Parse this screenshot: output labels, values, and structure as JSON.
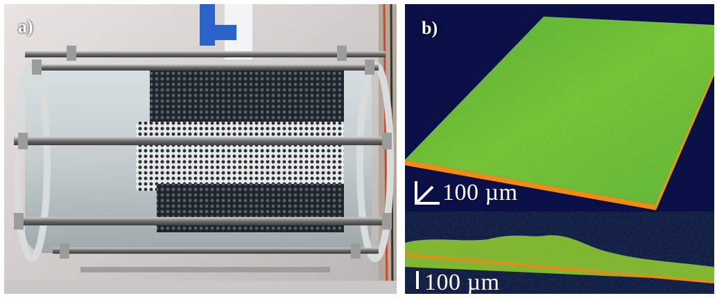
{
  "panels": {
    "a": {
      "label": "a)"
    },
    "b": {
      "label": "b)",
      "scale_top": "100 µm",
      "scale_bottom": "100 µm"
    }
  },
  "colors": {
    "biofilm_green": "#6fd22a",
    "background_navy": "#0a0f45",
    "substrate_orange": "#f08a1a",
    "steel": "#8a8a8a",
    "acrylic": "#c9d3d6"
  }
}
